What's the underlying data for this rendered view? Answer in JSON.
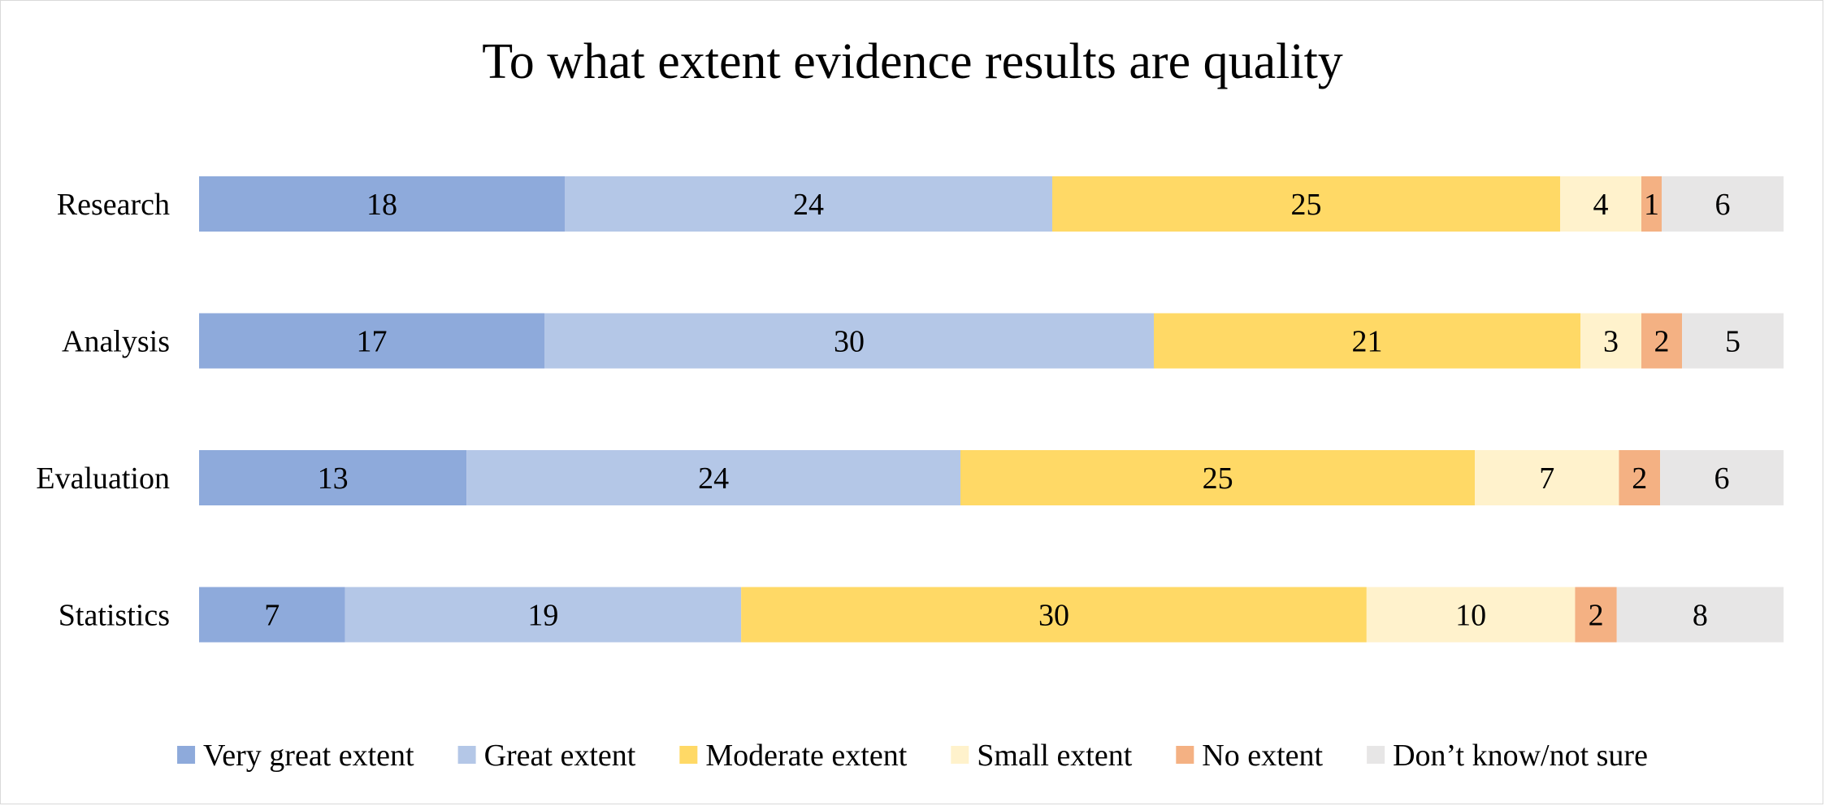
{
  "chart_data": {
    "type": "bar",
    "orientation": "horizontal",
    "stacked": "100%",
    "title": "To what extent evidence results are quality",
    "xlabel": "",
    "ylabel": "",
    "categories": [
      "Research",
      "Analysis",
      "Evaluation",
      "Statistics"
    ],
    "series": [
      {
        "name": "Very great extent",
        "color": "#8eaadb",
        "values": [
          18,
          17,
          13,
          7
        ]
      },
      {
        "name": "Great extent",
        "color": "#b4c7e7",
        "values": [
          24,
          30,
          24,
          19
        ]
      },
      {
        "name": "Moderate extent",
        "color": "#ffd966",
        "values": [
          25,
          21,
          25,
          30
        ]
      },
      {
        "name": "Small extent",
        "color": "#fff2cc",
        "values": [
          4,
          3,
          7,
          10
        ]
      },
      {
        "name": "No extent",
        "color": "#f4b183",
        "values": [
          1,
          2,
          2,
          2
        ]
      },
      {
        "name": "Don’t know/not sure",
        "color": "#e7e6e6",
        "values": [
          6,
          5,
          6,
          8
        ]
      }
    ],
    "data_labels": true,
    "grid": false,
    "legend": "bottom"
  }
}
